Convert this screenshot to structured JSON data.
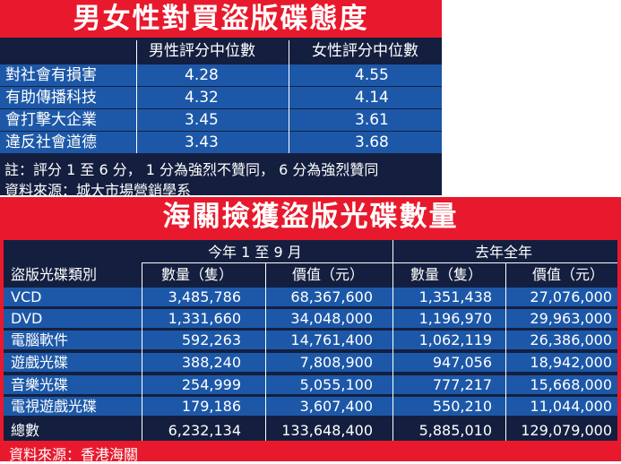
{
  "top": {
    "title": "男女性對買盜版碟態度",
    "columns": [
      "男性評分中位數",
      "女性評分中位數"
    ],
    "rows": [
      {
        "label": "對社會有損害",
        "male": "4.28",
        "female": "4.55"
      },
      {
        "label": "有助傳播科技",
        "male": "4.32",
        "female": "4.14"
      },
      {
        "label": "會打擊大企業",
        "male": "3.45",
        "female": "3.61"
      },
      {
        "label": "違反社會道德",
        "male": "3.43",
        "female": "3.68"
      }
    ],
    "note": "註：評分 1 至 6 分， 1 分為強烈不贊同， 6 分為強烈贊同",
    "source": "資料來源：城大市場營銷學系"
  },
  "bottom": {
    "title": "海關撿獲盜版光碟數量",
    "period1": "今年 1 至 9 月",
    "period2": "去年全年",
    "category_header": "盜版光碟類別",
    "qty_header": "數量（隻）",
    "value_header": "價值（元）",
    "rows": [
      {
        "label": "VCD",
        "q1": "3,485,786",
        "v1": "68,367,600",
        "q2": "1,351,438",
        "v2": "27,076,000"
      },
      {
        "label": "DVD",
        "q1": "1,331,660",
        "v1": "34,048,000",
        "q2": "1,196,970",
        "v2": "29,963,000"
      },
      {
        "label": "電腦軟件",
        "q1": "592,263",
        "v1": "14,761,400",
        "q2": "1,062,119",
        "v2": "26,386,000"
      },
      {
        "label": "遊戲光碟",
        "q1": "388,240",
        "v1": "7,808,900",
        "q2": "947,056",
        "v2": "18,942,000"
      },
      {
        "label": "音樂光碟",
        "q1": "254,999",
        "v1": "5,055,100",
        "q2": "777,217",
        "v2": "15,668,000"
      },
      {
        "label": "電視遊戲光碟",
        "q1": "179,186",
        "v1": "3,607,400",
        "q2": "550,210",
        "v2": "11,044,000"
      }
    ],
    "total": {
      "label": "總數",
      "q1": "6,232,134",
      "v1": "133,648,400",
      "q2": "5,885,010",
      "v2": "129,079,000"
    },
    "source": "資料來源：香港海關"
  },
  "colors": {
    "red": "#e8192c",
    "navy": "#141f3f",
    "blue": "#1d58a8"
  }
}
